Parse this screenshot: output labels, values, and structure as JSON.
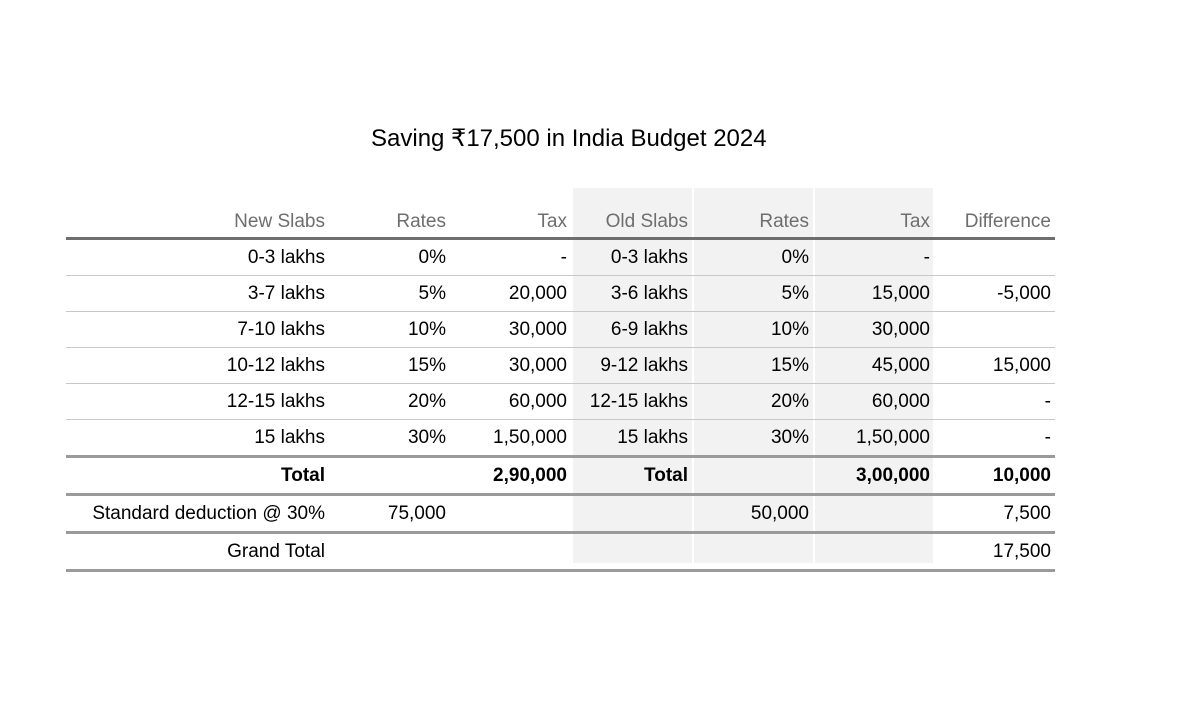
{
  "title": "Saving ₹17,500 in India Budget 2024",
  "headers": [
    "New Slabs",
    "Rates",
    "Tax",
    "Old Slabs",
    "Rates",
    "Tax",
    "Difference"
  ],
  "rows": [
    [
      "0-3 lakhs",
      "0%",
      "-",
      "0-3 lakhs",
      "0%",
      "-",
      ""
    ],
    [
      "3-7 lakhs",
      "5%",
      "20,000",
      "3-6 lakhs",
      "5%",
      "15,000",
      "-5,000"
    ],
    [
      "7-10 lakhs",
      "10%",
      "30,000",
      "6-9 lakhs",
      "10%",
      "30,000",
      ""
    ],
    [
      "10-12 lakhs",
      "15%",
      "30,000",
      "9-12 lakhs",
      "15%",
      "45,000",
      "15,000"
    ],
    [
      "12-15 lakhs",
      "20%",
      "60,000",
      "12-15 lakhs",
      "20%",
      "60,000",
      "-"
    ],
    [
      "15 lakhs",
      "30%",
      "1,50,000",
      "15 lakhs",
      "30%",
      "1,50,000",
      "-"
    ]
  ],
  "total": [
    "Total",
    "",
    "2,90,000",
    "Total",
    "",
    "3,00,000",
    "10,000"
  ],
  "standard_deduction": [
    "Standard deduction @ 30%",
    "75,000",
    "",
    "",
    "50,000",
    "",
    "7,500"
  ],
  "grand_total": [
    "Grand Total",
    "",
    "",
    "",
    "",
    "",
    "17,500"
  ]
}
